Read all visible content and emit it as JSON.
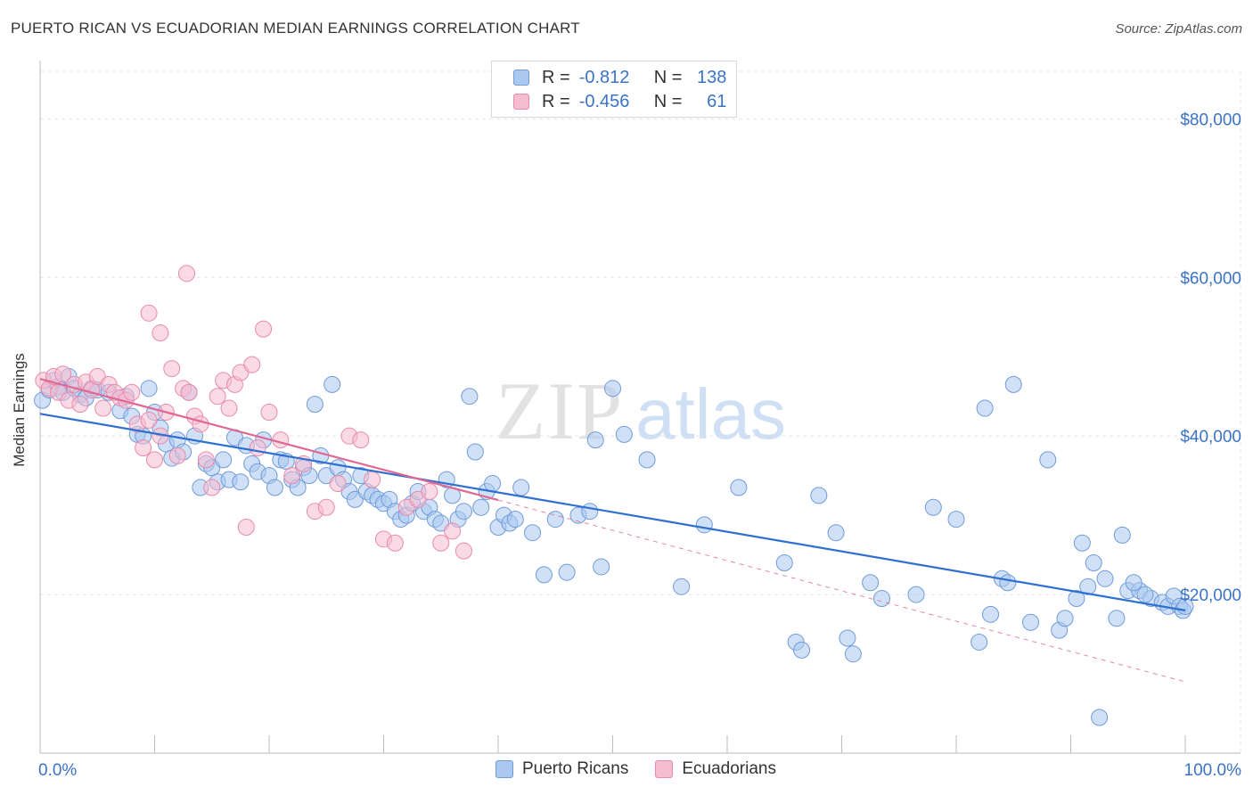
{
  "title": "PUERTO RICAN VS ECUADORIAN MEDIAN EARNINGS CORRELATION CHART",
  "source": "Source: ZipAtlas.com",
  "watermark": {
    "zip": "ZIP",
    "atlas": "atlas"
  },
  "colors": {
    "blue_fill": "#aac8f0",
    "blue_stroke": "#6f9bd9",
    "blue_line": "#2e6fd0",
    "pink_fill": "#f6bcd0",
    "pink_stroke": "#e98aaa",
    "pink_line": "#e06892",
    "tick_text": "#3a73c8"
  },
  "legend": {
    "rows": [
      {
        "r_label": "R =",
        "r_value": "-0.812",
        "n_label": "N =",
        "n_value": "138"
      },
      {
        "r_label": "R =",
        "r_value": "-0.456",
        "n_label": "N =",
        "n_value": "61"
      }
    ]
  },
  "bottom_legend": [
    "Puerto Ricans",
    "Ecuadorians"
  ],
  "chart_data": {
    "type": "scatter",
    "title": "PUERTO RICAN VS ECUADORIAN MEDIAN EARNINGS CORRELATION CHART",
    "xlabel": "",
    "ylabel": "Median Earnings",
    "x_range": [
      0,
      100
    ],
    "y_range": [
      0,
      86000
    ],
    "x_tick_labels": [
      "0.0%",
      "100.0%"
    ],
    "y_ticks": [
      20000,
      40000,
      60000,
      80000
    ],
    "y_tick_labels": [
      "$20,000",
      "$40,000",
      "$60,000",
      "$80,000"
    ],
    "grid": true,
    "legend_position": "top-center",
    "series": [
      {
        "name": "Puerto Ricans",
        "r": -0.812,
        "n": 138,
        "trend": {
          "x0": 0,
          "y0": 42800,
          "x1": 100,
          "y1": 18000,
          "dashed_from": null
        },
        "points": [
          [
            0.2,
            44500
          ],
          [
            0.8,
            45800
          ],
          [
            1.2,
            47000
          ],
          [
            1.6,
            46200
          ],
          [
            2.0,
            45500
          ],
          [
            2.5,
            47500
          ],
          [
            3.0,
            46000
          ],
          [
            3.5,
            45200
          ],
          [
            4.0,
            44800
          ],
          [
            4.5,
            46000
          ],
          [
            5.0,
            45800
          ],
          [
            6.0,
            45500
          ],
          [
            7.0,
            43200
          ],
          [
            7.5,
            45000
          ],
          [
            8.0,
            42500
          ],
          [
            8.5,
            40200
          ],
          [
            9.0,
            40000
          ],
          [
            9.5,
            46000
          ],
          [
            10.0,
            43000
          ],
          [
            10.5,
            41000
          ],
          [
            11.0,
            39000
          ],
          [
            11.5,
            37200
          ],
          [
            12.0,
            39500
          ],
          [
            12.5,
            38000
          ],
          [
            13.0,
            45500
          ],
          [
            13.5,
            40000
          ],
          [
            14.0,
            33500
          ],
          [
            14.5,
            36500
          ],
          [
            15.0,
            36000
          ],
          [
            15.5,
            34200
          ],
          [
            16.0,
            37000
          ],
          [
            16.5,
            34500
          ],
          [
            17.0,
            39800
          ],
          [
            17.5,
            34200
          ],
          [
            18.0,
            38800
          ],
          [
            18.5,
            36500
          ],
          [
            19.0,
            35500
          ],
          [
            19.5,
            39500
          ],
          [
            20.0,
            35000
          ],
          [
            20.5,
            33500
          ],
          [
            21.0,
            37000
          ],
          [
            21.5,
            36800
          ],
          [
            22.0,
            34500
          ],
          [
            22.5,
            33500
          ],
          [
            23.0,
            36000
          ],
          [
            23.5,
            35000
          ],
          [
            24.0,
            44000
          ],
          [
            24.5,
            37500
          ],
          [
            25.0,
            35000
          ],
          [
            25.5,
            46500
          ],
          [
            26.0,
            36000
          ],
          [
            26.5,
            34500
          ],
          [
            27.0,
            33000
          ],
          [
            27.5,
            32000
          ],
          [
            28.0,
            35000
          ],
          [
            28.5,
            33000
          ],
          [
            29.0,
            32500
          ],
          [
            29.5,
            32000
          ],
          [
            30.0,
            31500
          ],
          [
            30.5,
            32000
          ],
          [
            31.0,
            30500
          ],
          [
            31.5,
            29500
          ],
          [
            32.0,
            30000
          ],
          [
            32.5,
            31500
          ],
          [
            33.0,
            33000
          ],
          [
            33.5,
            30500
          ],
          [
            34.0,
            31000
          ],
          [
            34.5,
            29500
          ],
          [
            35.0,
            29000
          ],
          [
            35.5,
            34500
          ],
          [
            36.0,
            32500
          ],
          [
            36.5,
            29500
          ],
          [
            37.0,
            30500
          ],
          [
            37.5,
            45000
          ],
          [
            38.0,
            38000
          ],
          [
            38.5,
            31000
          ],
          [
            39.0,
            33000
          ],
          [
            39.5,
            34000
          ],
          [
            40.0,
            28500
          ],
          [
            40.5,
            30000
          ],
          [
            41.0,
            29000
          ],
          [
            41.5,
            29500
          ],
          [
            42.0,
            33500
          ],
          [
            43.0,
            27800
          ],
          [
            44.0,
            22500
          ],
          [
            45.0,
            29500
          ],
          [
            46.0,
            22800
          ],
          [
            47.0,
            30000
          ],
          [
            48.0,
            30500
          ],
          [
            48.5,
            39500
          ],
          [
            49.0,
            23500
          ],
          [
            50.0,
            46000
          ],
          [
            51.0,
            40200
          ],
          [
            53.0,
            37000
          ],
          [
            56.0,
            21000
          ],
          [
            58.0,
            28800
          ],
          [
            61.0,
            33500
          ],
          [
            65.0,
            24000
          ],
          [
            66.0,
            14000
          ],
          [
            66.5,
            13000
          ],
          [
            68.0,
            32500
          ],
          [
            69.5,
            27800
          ],
          [
            70.5,
            14500
          ],
          [
            71.0,
            12500
          ],
          [
            72.5,
            21500
          ],
          [
            73.5,
            19500
          ],
          [
            76.5,
            20000
          ],
          [
            78.0,
            31000
          ],
          [
            80.0,
            29500
          ],
          [
            82.0,
            14000
          ],
          [
            82.5,
            43500
          ],
          [
            83.0,
            17500
          ],
          [
            84.0,
            22000
          ],
          [
            84.5,
            21500
          ],
          [
            85.0,
            46500
          ],
          [
            86.5,
            16500
          ],
          [
            88.0,
            37000
          ],
          [
            89.0,
            15500
          ],
          [
            89.5,
            17000
          ],
          [
            90.5,
            19500
          ],
          [
            91.0,
            26500
          ],
          [
            91.5,
            21000
          ],
          [
            92.0,
            24000
          ],
          [
            92.5,
            4500
          ],
          [
            93.0,
            22000
          ],
          [
            94.0,
            17000
          ],
          [
            94.5,
            27500
          ],
          [
            95.0,
            20500
          ],
          [
            96.0,
            20500
          ],
          [
            97.0,
            19500
          ],
          [
            98.0,
            19000
          ],
          [
            98.5,
            18500
          ],
          [
            99.0,
            19800
          ],
          [
            99.5,
            18500
          ],
          [
            99.8,
            18000
          ],
          [
            100.0,
            18500
          ],
          [
            95.5,
            21500
          ],
          [
            96.5,
            20000
          ]
        ]
      },
      {
        "name": "Ecuadorians",
        "r": -0.456,
        "n": 61,
        "trend": {
          "x0": 0,
          "y0": 47200,
          "x1": 100,
          "y1": 9000,
          "solid_until_x": 40
        },
        "points": [
          [
            0.3,
            47000
          ],
          [
            0.8,
            46000
          ],
          [
            1.2,
            47500
          ],
          [
            1.6,
            45500
          ],
          [
            2.0,
            47800
          ],
          [
            2.5,
            44500
          ],
          [
            3.0,
            46500
          ],
          [
            3.5,
            44000
          ],
          [
            4.0,
            46800
          ],
          [
            4.5,
            45800
          ],
          [
            5.0,
            47500
          ],
          [
            5.5,
            43500
          ],
          [
            6.0,
            46500
          ],
          [
            6.5,
            45500
          ],
          [
            7.0,
            44800
          ],
          [
            7.5,
            44500
          ],
          [
            8.0,
            45500
          ],
          [
            8.5,
            41500
          ],
          [
            9.0,
            38500
          ],
          [
            9.5,
            42000
          ],
          [
            10.0,
            37000
          ],
          [
            10.5,
            40000
          ],
          [
            11.0,
            43000
          ],
          [
            11.5,
            48500
          ],
          [
            12.0,
            37500
          ],
          [
            12.5,
            46000
          ],
          [
            13.0,
            45500
          ],
          [
            13.5,
            42500
          ],
          [
            14.0,
            41500
          ],
          [
            14.5,
            37000
          ],
          [
            15.0,
            33500
          ],
          [
            15.5,
            45000
          ],
          [
            16.0,
            47000
          ],
          [
            16.5,
            43500
          ],
          [
            17.0,
            46500
          ],
          [
            17.5,
            48000
          ],
          [
            18.0,
            28500
          ],
          [
            18.5,
            49000
          ],
          [
            19.0,
            38500
          ],
          [
            19.5,
            53500
          ],
          [
            20.0,
            43000
          ],
          [
            21.0,
            39500
          ],
          [
            22.0,
            35000
          ],
          [
            23.0,
            36500
          ],
          [
            24.0,
            30500
          ],
          [
            25.0,
            31000
          ],
          [
            26.0,
            34000
          ],
          [
            27.0,
            40000
          ],
          [
            28.0,
            39500
          ],
          [
            29.0,
            34500
          ],
          [
            30.0,
            27000
          ],
          [
            31.0,
            26500
          ],
          [
            32.0,
            31000
          ],
          [
            33.0,
            32000
          ],
          [
            34.0,
            33000
          ],
          [
            35.0,
            26500
          ],
          [
            36.0,
            28000
          ],
          [
            37.0,
            25500
          ],
          [
            12.8,
            60500
          ],
          [
            9.5,
            55500
          ],
          [
            10.5,
            53000
          ]
        ]
      }
    ]
  }
}
